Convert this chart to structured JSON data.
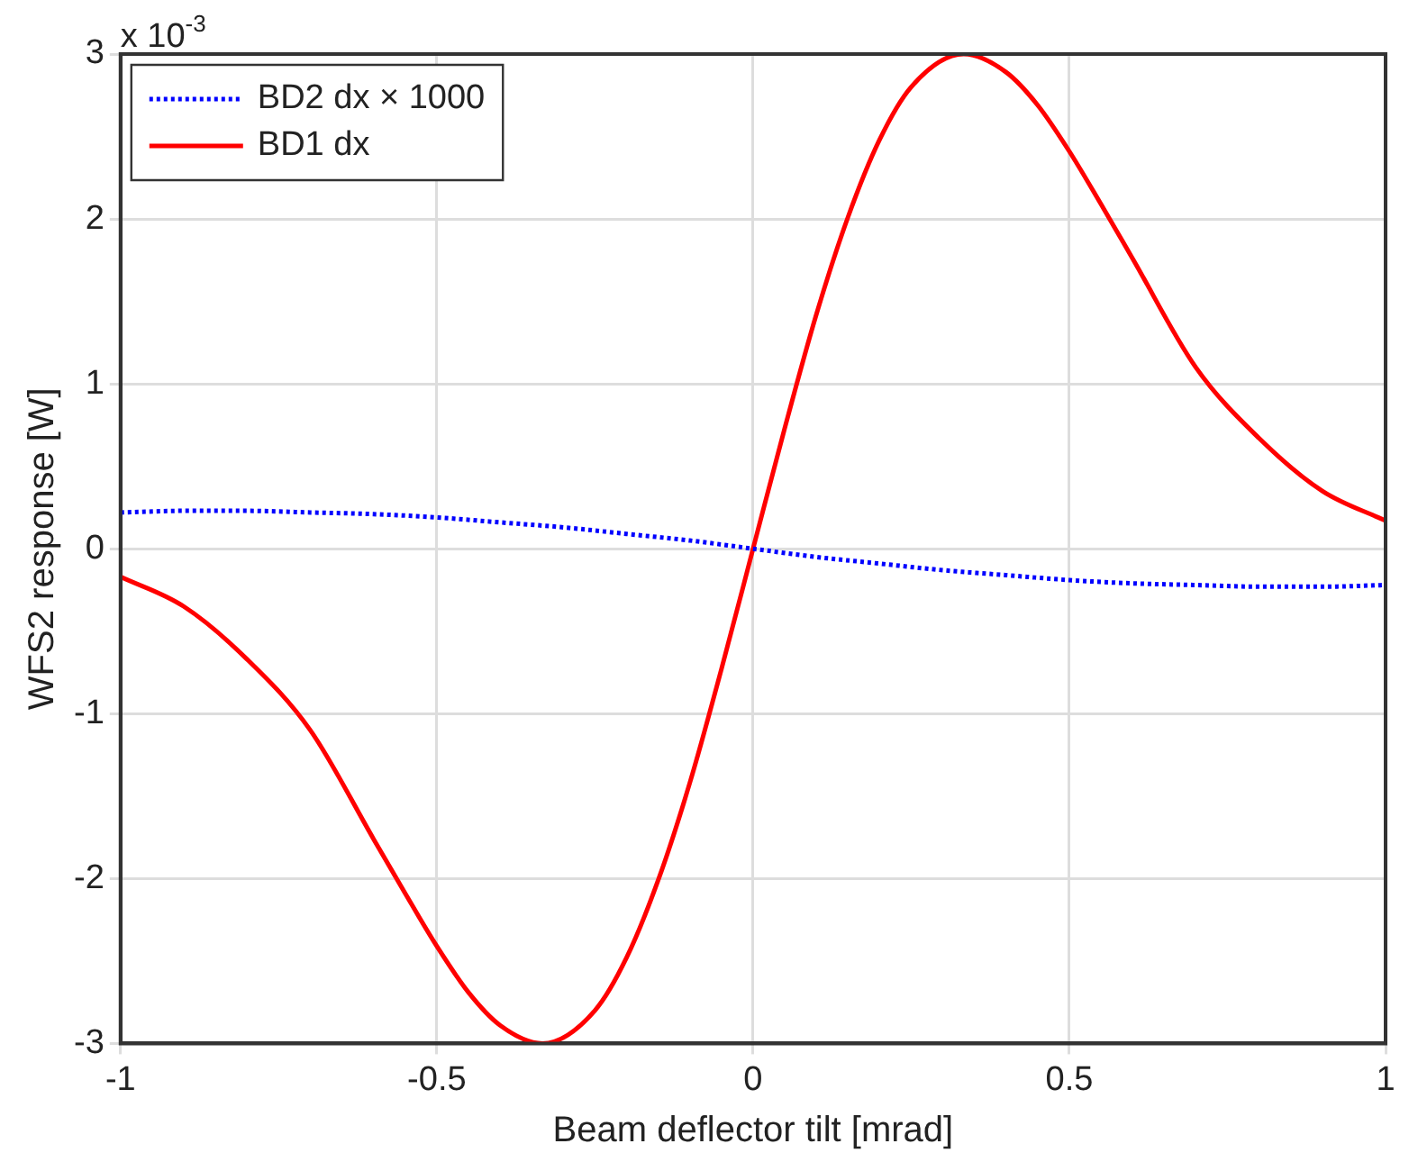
{
  "chart_data": {
    "type": "line",
    "xlabel": "Beam deflector tilt [mrad]",
    "ylabel": "WFS2 response [W]",
    "annotations": [
      "x 10$^{-3}$"
    ],
    "xlim": [
      -1,
      1
    ],
    "xticks": [
      -1,
      -0.5,
      0,
      0.5,
      1
    ],
    "ylim": [
      -3,
      3
    ],
    "yticks": [
      -3,
      -2,
      -1,
      0,
      1,
      2,
      3
    ],
    "grid": true,
    "legend": "top left",
    "marker": "none",
    "series": [
      {
        "name": "BD2 dx × 1000",
        "color": "#0000ff",
        "line_style": "dotted",
        "x": [
          -1,
          -0.9,
          -0.8,
          -0.7,
          -0.6,
          -0.5,
          -0.4,
          -0.3,
          -0.2,
          -0.1,
          0,
          0.1,
          0.2,
          0.3,
          0.4,
          0.5,
          0.6,
          0.7,
          0.8,
          0.9,
          1
        ],
        "values": [
          0.22,
          0.23,
          0.23,
          0.22,
          0.21,
          0.19,
          0.16,
          0.13,
          0.09,
          0.05,
          0,
          -0.05,
          -0.09,
          -0.13,
          -0.16,
          -0.19,
          -0.21,
          -0.22,
          -0.23,
          -0.23,
          -0.22
        ]
      },
      {
        "name": "BD1 dx",
        "color": "#ff0000",
        "line_style": "solid",
        "x": [
          -1,
          -0.9,
          -0.8,
          -0.7,
          -0.6,
          -0.55,
          -0.5,
          -0.45,
          -0.4,
          -0.333,
          -0.25,
          -0.2,
          -0.15,
          -0.1,
          -0.05,
          0,
          0.05,
          0.1,
          0.15,
          0.2,
          0.25,
          0.333,
          0.4,
          0.45,
          0.5,
          0.55,
          0.6,
          0.7,
          0.8,
          0.9,
          1
        ],
        "values": [
          -0.17,
          -0.35,
          -0.67,
          -1.1,
          -1.76,
          -2.09,
          -2.41,
          -2.69,
          -2.89,
          -3,
          -2.8,
          -2.48,
          -2.01,
          -1.42,
          -0.73,
          0,
          0.73,
          1.42,
          2.01,
          2.48,
          2.8,
          3,
          2.89,
          2.69,
          2.41,
          2.09,
          1.76,
          1.1,
          0.67,
          0.35,
          0.17
        ]
      }
    ]
  }
}
